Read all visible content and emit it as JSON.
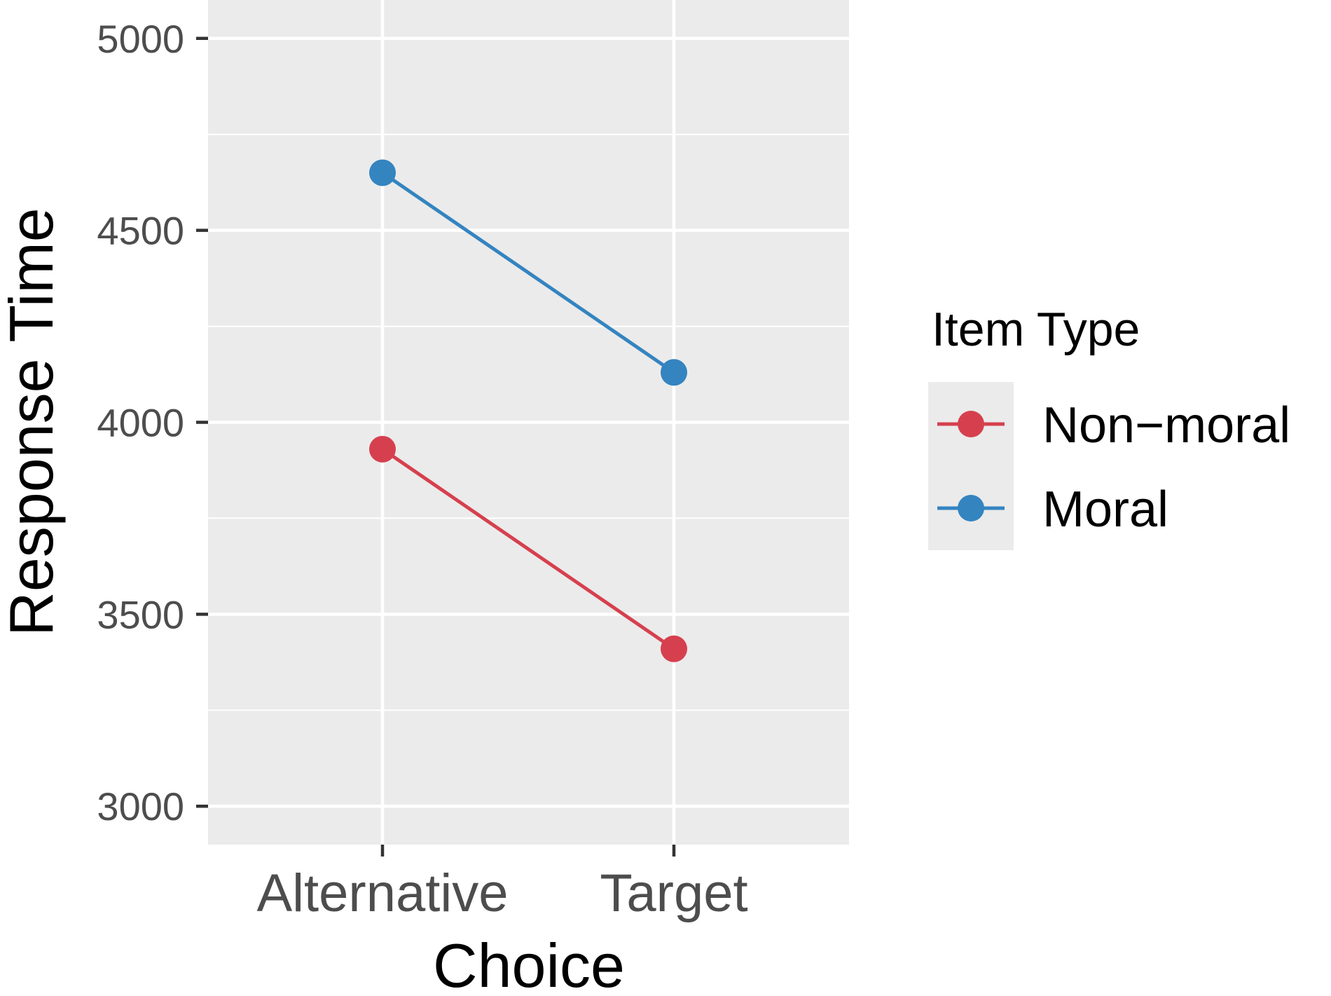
{
  "chart_data": {
    "type": "line",
    "xlabel": "Choice",
    "ylabel": "Response Time",
    "categories": [
      "Alternative",
      "Target"
    ],
    "ylim": [
      2900,
      5100
    ],
    "yticks": [
      3000,
      3500,
      4000,
      4500,
      5000
    ],
    "y_minor_gridlines": [
      3250,
      3750,
      4250,
      4750
    ],
    "grid": true,
    "legend": {
      "title": "Item Type",
      "position": "right"
    },
    "series": [
      {
        "name": "Non−moral",
        "color": "#d6404e",
        "values": [
          3930,
          3410
        ]
      },
      {
        "name": "Moral",
        "color": "#3484c0",
        "values": [
          4650,
          4130
        ]
      }
    ],
    "panel_background": "#ebebeb",
    "gridline_color": "#ffffff"
  }
}
